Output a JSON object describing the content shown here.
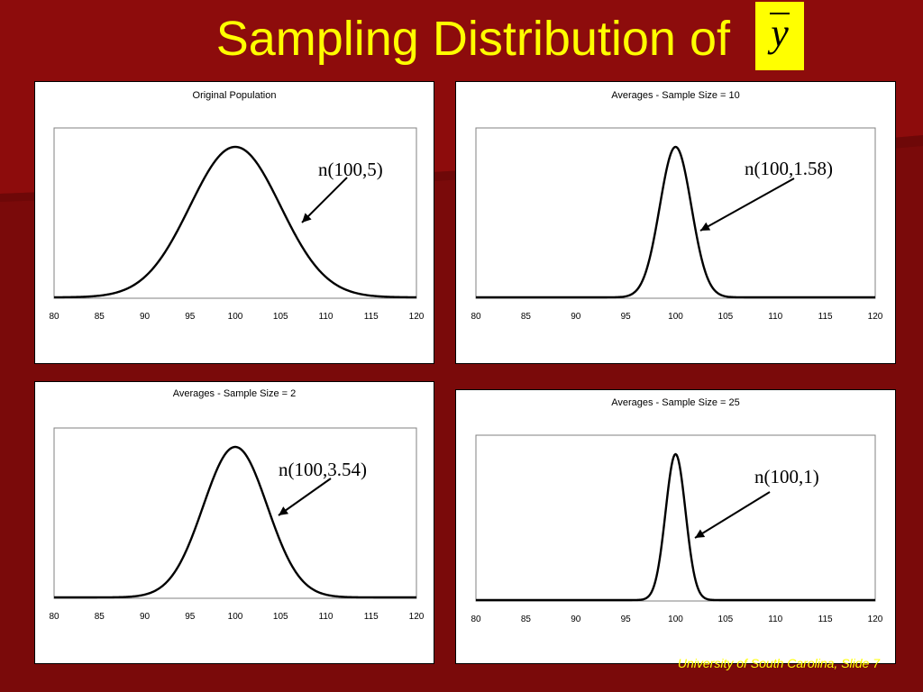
{
  "slide": {
    "title": "Sampling Distribution of",
    "title_symbol": "y",
    "footer": "University of South Carolina, Slide 7"
  },
  "colors": {
    "background": "#7a0a0a",
    "title": "#ffff00",
    "curve": "#000000"
  },
  "chart_data": [
    {
      "type": "line",
      "title": "Original Population",
      "xticks": [
        "80",
        "85",
        "90",
        "95",
        "100",
        "105",
        "110",
        "115",
        "120"
      ],
      "xlim": [
        80,
        120
      ],
      "distribution": {
        "mean": 100,
        "sd": 5
      },
      "annotation": "n(100,5)",
      "grid": false
    },
    {
      "type": "line",
      "title": "Averages - Sample Size = 10",
      "xticks": [
        "80",
        "85",
        "90",
        "95",
        "100",
        "105",
        "110",
        "115",
        "120"
      ],
      "xlim": [
        80,
        120
      ],
      "distribution": {
        "mean": 100,
        "sd": 1.58
      },
      "annotation": "n(100,1.58)",
      "grid": false
    },
    {
      "type": "line",
      "title": "Averages - Sample Size = 2",
      "xticks": [
        "80",
        "85",
        "90",
        "95",
        "100",
        "105",
        "110",
        "115",
        "120"
      ],
      "xlim": [
        80,
        120
      ],
      "distribution": {
        "mean": 100,
        "sd": 3.54
      },
      "annotation": "n(100,3.54)",
      "grid": false
    },
    {
      "type": "line",
      "title": "Averages - Sample Size = 25",
      "xticks": [
        "80",
        "85",
        "90",
        "95",
        "100",
        "105",
        "110",
        "115",
        "120"
      ],
      "xlim": [
        80,
        120
      ],
      "distribution": {
        "mean": 100,
        "sd": 1
      },
      "annotation": "n(100,1)",
      "grid": false
    }
  ]
}
